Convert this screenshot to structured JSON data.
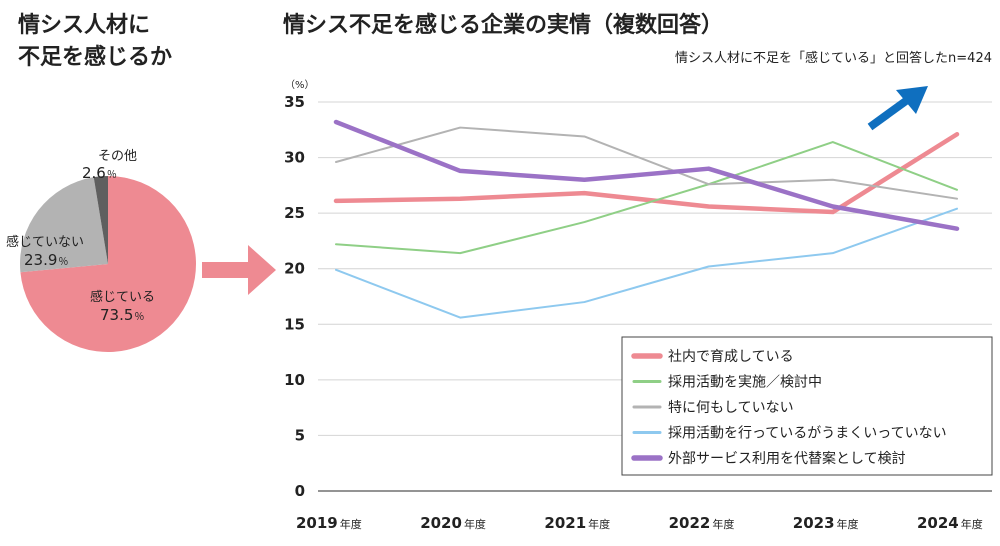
{
  "left_title_line1": "情シス人材に",
  "left_title_line2": "不足を感じるか",
  "main_title": "情シス不足を感じる企業の実情（複数回答）",
  "subtitle": "情シス人材に不足を「感じている」と回答したn=424",
  "chart_data": [
    {
      "type": "pie",
      "slices": [
        {
          "label": "感じている",
          "value": 73.5,
          "display": "73.5",
          "unit": "％",
          "color": "#ee8a92"
        },
        {
          "label": "感じていない",
          "value": 23.9,
          "display": "23.9",
          "unit": "％",
          "color": "#b3b3b3"
        },
        {
          "label": "その他",
          "value": 2.6,
          "display": "2.6",
          "unit": "％",
          "color": "#5f5f5f"
        }
      ]
    },
    {
      "type": "line",
      "y_unit": "（%）",
      "ylim": [
        0,
        35
      ],
      "yticks": [
        "0",
        "5",
        "10",
        "15",
        "20",
        "25",
        "30",
        "35"
      ],
      "categories": [
        {
          "year": "2019",
          "suffix": "年度"
        },
        {
          "year": "2020",
          "suffix": "年度"
        },
        {
          "year": "2021",
          "suffix": "年度"
        },
        {
          "year": "2022",
          "suffix": "年度"
        },
        {
          "year": "2023",
          "suffix": "年度"
        },
        {
          "year": "2024",
          "suffix": "年度"
        }
      ],
      "grid": true,
      "legend_position": "bottom-right",
      "series": [
        {
          "name": "社内で育成している",
          "color": "#ee8a92",
          "width": 4.5,
          "values": [
            26.1,
            26.3,
            26.8,
            25.6,
            25.1,
            32.1
          ]
        },
        {
          "name": "採用活動を実施／検討中",
          "color": "#8fcf86",
          "width": 2,
          "values": [
            22.2,
            21.4,
            24.2,
            27.6,
            31.4,
            27.1
          ]
        },
        {
          "name": "特に何もしていない",
          "color": "#b3b3b3",
          "width": 2,
          "values": [
            29.6,
            32.7,
            31.9,
            27.6,
            28.0,
            26.3
          ]
        },
        {
          "name": "採用活動を行っているがうまくいっていない",
          "color": "#8ec9ef",
          "width": 2,
          "values": [
            19.9,
            15.6,
            17.0,
            20.2,
            21.4,
            25.4
          ]
        },
        {
          "name": "外部サービス利用を代替案として検討",
          "color": "#9b72c6",
          "width": 4.5,
          "values": [
            33.2,
            28.8,
            28.0,
            29.0,
            25.6,
            23.6
          ]
        }
      ]
    }
  ],
  "colors": {
    "arrow_pink": "#ee8a92",
    "trend_arrow": "#0f6fbf"
  }
}
